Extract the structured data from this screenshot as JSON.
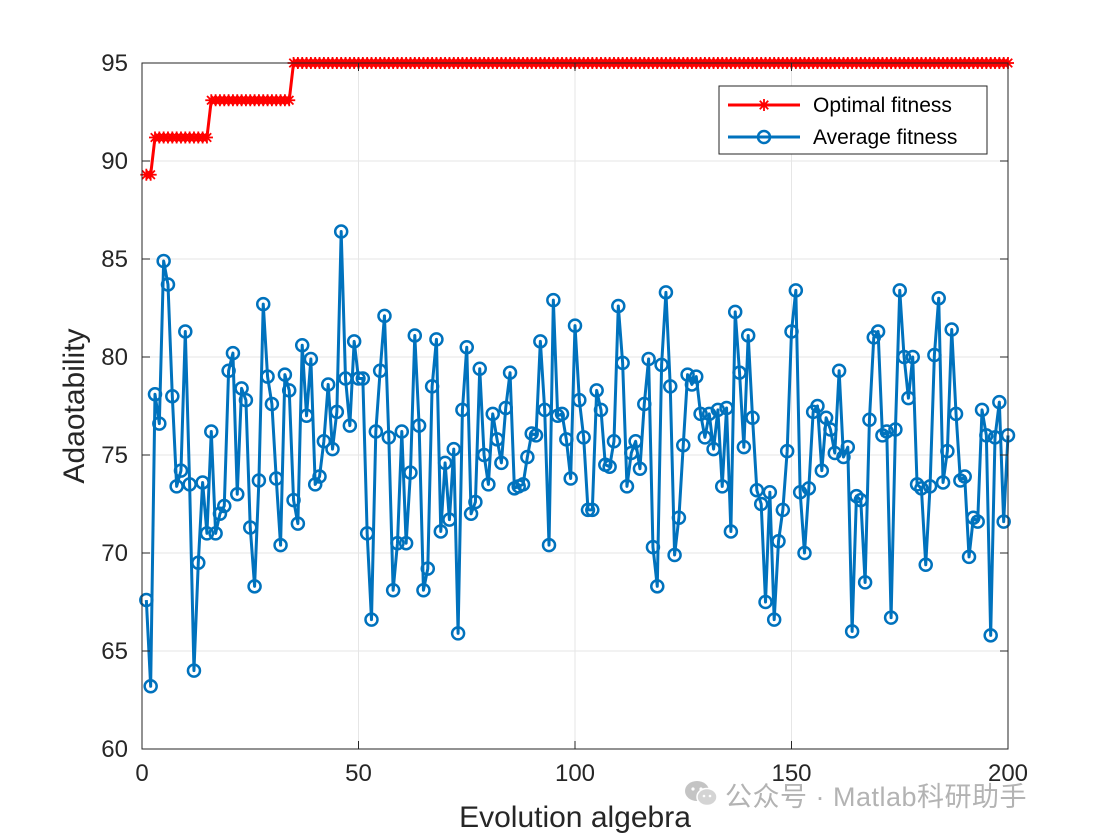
{
  "chart_data": {
    "type": "line",
    "title": "",
    "xlabel": "Evolution algebra",
    "ylabel": "Adaotability",
    "xlim": [
      0,
      200
    ],
    "ylim": [
      60,
      95
    ],
    "xticks": [
      0,
      50,
      100,
      150,
      200
    ],
    "yticks": [
      60,
      65,
      70,
      75,
      80,
      85,
      90,
      95
    ],
    "grid": true,
    "legend_position": "top-right",
    "series": [
      {
        "name": "Optimal fitness",
        "color": "#ff0000",
        "marker": "asterisk",
        "steps": [
          {
            "from": 1,
            "to": 2,
            "value": 89.3
          },
          {
            "from": 3,
            "to": 15,
            "value": 91.2
          },
          {
            "from": 16,
            "to": 34,
            "value": 93.1
          },
          {
            "from": 35,
            "to": 200,
            "value": 95.0
          }
        ]
      },
      {
        "name": "Average fitness",
        "color": "#0072bd",
        "marker": "circle",
        "x_start": 1,
        "values": [
          67.6,
          63.2,
          78.1,
          76.6,
          84.9,
          83.7,
          78.0,
          73.4,
          74.2,
          81.3,
          73.5,
          64.0,
          69.5,
          73.6,
          71.0,
          76.2,
          71.0,
          72.0,
          72.4,
          79.3,
          80.2,
          73.0,
          78.4,
          77.8,
          71.3,
          68.3,
          73.7,
          82.7,
          79.0,
          77.6,
          73.8,
          70.4,
          79.1,
          78.3,
          72.7,
          71.5,
          80.6,
          77.0,
          79.9,
          73.5,
          73.9,
          75.7,
          78.6,
          75.3,
          77.2,
          86.4,
          78.9,
          76.5,
          80.8,
          78.9,
          78.9,
          71.0,
          66.6,
          76.2,
          79.3,
          82.1,
          75.9,
          68.1,
          70.5,
          76.2,
          70.5,
          74.1,
          81.1,
          76.5,
          68.1,
          69.2,
          78.5,
          80.9,
          71.1,
          74.6,
          71.7,
          75.3,
          65.9,
          77.3,
          80.5,
          72.0,
          72.6,
          79.4,
          75.0,
          73.5,
          77.1,
          75.8,
          74.6,
          77.4,
          79.2,
          73.3,
          73.4,
          73.5,
          74.9,
          76.1,
          76.0,
          80.8,
          77.3,
          70.4,
          82.9,
          77.0,
          77.1,
          75.8,
          73.8,
          81.6,
          77.8,
          75.9,
          72.2,
          72.2,
          78.3,
          77.3,
          74.5,
          74.4,
          75.7,
          82.6,
          79.7,
          73.4,
          75.1,
          75.7,
          74.3,
          77.6,
          79.9,
          70.3,
          68.3,
          79.6,
          83.3,
          78.5,
          69.9,
          71.8,
          75.5,
          79.1,
          78.6,
          79.0,
          77.1,
          75.9,
          77.1,
          75.3,
          77.3,
          73.4,
          77.4,
          71.1,
          82.3,
          79.2,
          75.4,
          81.1,
          76.9,
          73.2,
          72.5,
          67.5,
          73.1,
          66.6,
          70.6,
          72.2,
          75.2,
          81.3,
          83.4,
          73.1,
          70.0,
          73.3,
          77.2,
          77.5,
          74.2,
          76.9,
          76.3,
          75.1,
          79.3,
          74.9,
          75.4,
          66.0,
          72.9,
          72.7,
          68.5,
          76.8,
          81.0,
          81.3,
          76.0,
          76.2,
          66.7,
          76.3,
          83.4,
          80.0,
          77.9,
          80.0,
          73.5,
          73.3,
          69.4,
          73.4,
          80.1,
          83.0,
          73.6,
          75.2,
          81.4,
          77.1,
          73.7,
          73.9,
          69.8,
          71.8,
          71.6,
          77.3,
          76.0,
          65.8,
          75.9,
          77.7,
          71.6,
          76.0
        ]
      }
    ]
  },
  "watermark": {
    "text": "公众号 · Matlab科研助手"
  }
}
